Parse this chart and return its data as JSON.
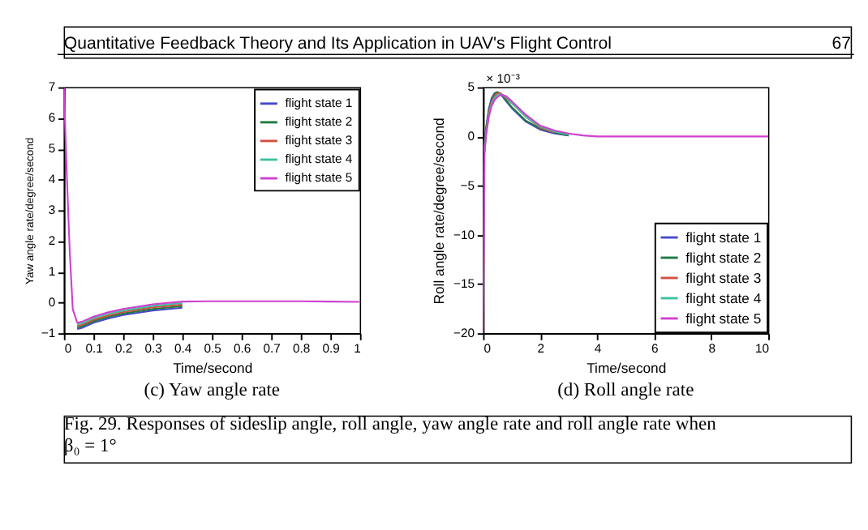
{
  "chart_data": [
    {
      "type": "line",
      "title": "(c) Yaw angle rate",
      "xlabel": "Time/second",
      "ylabel": "Yaw angle rate/degree/second",
      "annotations": [
        "Quantitative Feedback Theory and Its Application in UAV's Flight Control",
        "67"
      ],
      "x": [
        0,
        0.01,
        0.02,
        0.03,
        0.045,
        0.06,
        0.1,
        0.15,
        0.2,
        0.3,
        0.4,
        0.5,
        0.6,
        0.7,
        0.8,
        0.9,
        1
      ],
      "series": [
        {
          "name": "flight state 1",
          "color": "#4848c8",
          "values": [
            null,
            null,
            null,
            null,
            -0.86,
            -0.83,
            -0.66,
            -0.52,
            -0.41,
            -0.26,
            -0.17,
            null,
            null,
            null,
            null,
            null,
            null
          ]
        },
        {
          "name": "flight state 2",
          "color": "#207a40",
          "values": [
            null,
            null,
            null,
            null,
            -0.81,
            -0.78,
            -0.61,
            -0.47,
            -0.36,
            -0.21,
            -0.12,
            null,
            null,
            null,
            null,
            null,
            null
          ]
        },
        {
          "name": "flight state 3",
          "color": "#d05040",
          "values": [
            null,
            null,
            null,
            null,
            -0.76,
            -0.73,
            -0.56,
            -0.42,
            -0.31,
            -0.16,
            -0.07,
            null,
            null,
            null,
            null,
            null,
            null
          ]
        },
        {
          "name": "flight state 4",
          "color": "#40c0a0",
          "values": [
            null,
            null,
            null,
            null,
            -0.71,
            -0.68,
            -0.51,
            -0.37,
            -0.26,
            -0.11,
            -0.02,
            null,
            null,
            null,
            null,
            null,
            null
          ]
        },
        {
          "name": "flight state 5",
          "color": "#d040d0",
          "values": [
            7,
            4.1,
            1.6,
            -0.22,
            -0.66,
            -0.63,
            -0.46,
            -0.32,
            -0.21,
            -0.06,
            0.03,
            0.04,
            0.04,
            0.04,
            0.04,
            0.03,
            0.02
          ]
        }
      ],
      "xlim": [
        0,
        1
      ],
      "xticks": [
        0,
        0.1,
        0.2,
        0.3,
        0.4,
        0.5,
        0.6,
        0.7,
        0.8,
        0.9,
        1
      ],
      "ylim": [
        -1,
        7
      ],
      "yticks": [
        -1,
        0,
        1,
        2,
        3,
        4,
        5,
        6,
        7
      ],
      "legend": "top right",
      "grid": false
    },
    {
      "type": "line",
      "title": "(d) Roll angle rate",
      "xlabel": "Time/second",
      "ylabel": "Roll angle rate/degree/second",
      "annotations": [
        "× 10⁻³",
        "Fig. 29. Responses of sideslip angle, roll angle, yaw angle rate and roll angle rate when\nβ₀ = 1°"
      ],
      "x": [
        0,
        0.05,
        0.1,
        0.2,
        0.3,
        0.4,
        0.5,
        0.6,
        0.7,
        0.8,
        1,
        1.5,
        2,
        2.5,
        3,
        3.5,
        4,
        5,
        6,
        8,
        10
      ],
      "series": [
        {
          "name": "flight state 1",
          "color": "#4848c8",
          "values": [
            null,
            -1,
            0.8,
            2.8,
            3.9,
            4.4,
            4.5,
            4.3,
            4,
            3.6,
            2.9,
            1.5,
            0.7,
            0.3,
            0.1,
            null,
            null,
            null,
            null,
            null,
            null
          ]
        },
        {
          "name": "flight state 2",
          "color": "#207a40",
          "values": [
            null,
            -1.2,
            0.6,
            2.6,
            3.7,
            4.3,
            4.5,
            4.4,
            4.1,
            3.7,
            3,
            1.6,
            0.8,
            0.4,
            0.1,
            null,
            null,
            null,
            null,
            null,
            null
          ]
        },
        {
          "name": "flight state 3",
          "color": "#d05040",
          "values": [
            null,
            -1.4,
            0.4,
            2.4,
            3.5,
            4.1,
            4.4,
            4.4,
            4.2,
            3.9,
            3.4,
            2,
            0.9,
            0.4,
            null,
            null,
            null,
            null,
            null,
            null,
            null
          ]
        },
        {
          "name": "flight state 4",
          "color": "#40c0a0",
          "values": [
            null,
            -1.6,
            0.2,
            2.2,
            3.3,
            3.9,
            4.2,
            4.3,
            4.2,
            4,
            3.4,
            2,
            1,
            0.5,
            0.2,
            null,
            null,
            null,
            null,
            null,
            null
          ]
        },
        {
          "name": "flight state 5",
          "color": "#d040d0",
          "values": [
            -20,
            -1.8,
            0,
            2,
            3.1,
            3.7,
            4,
            4.2,
            4.2,
            4.1,
            3.6,
            2.2,
            1.1,
            0.6,
            0.3,
            0.1,
            0,
            0,
            0,
            0,
            0
          ]
        }
      ],
      "xlim": [
        0,
        10
      ],
      "xticks": [
        0,
        2,
        4,
        6,
        8,
        10
      ],
      "ylim": [
        -20,
        5
      ],
      "yticks": [
        -20,
        -15,
        -10,
        -5,
        0,
        5
      ],
      "legend": "bottom right",
      "grid": false
    }
  ]
}
